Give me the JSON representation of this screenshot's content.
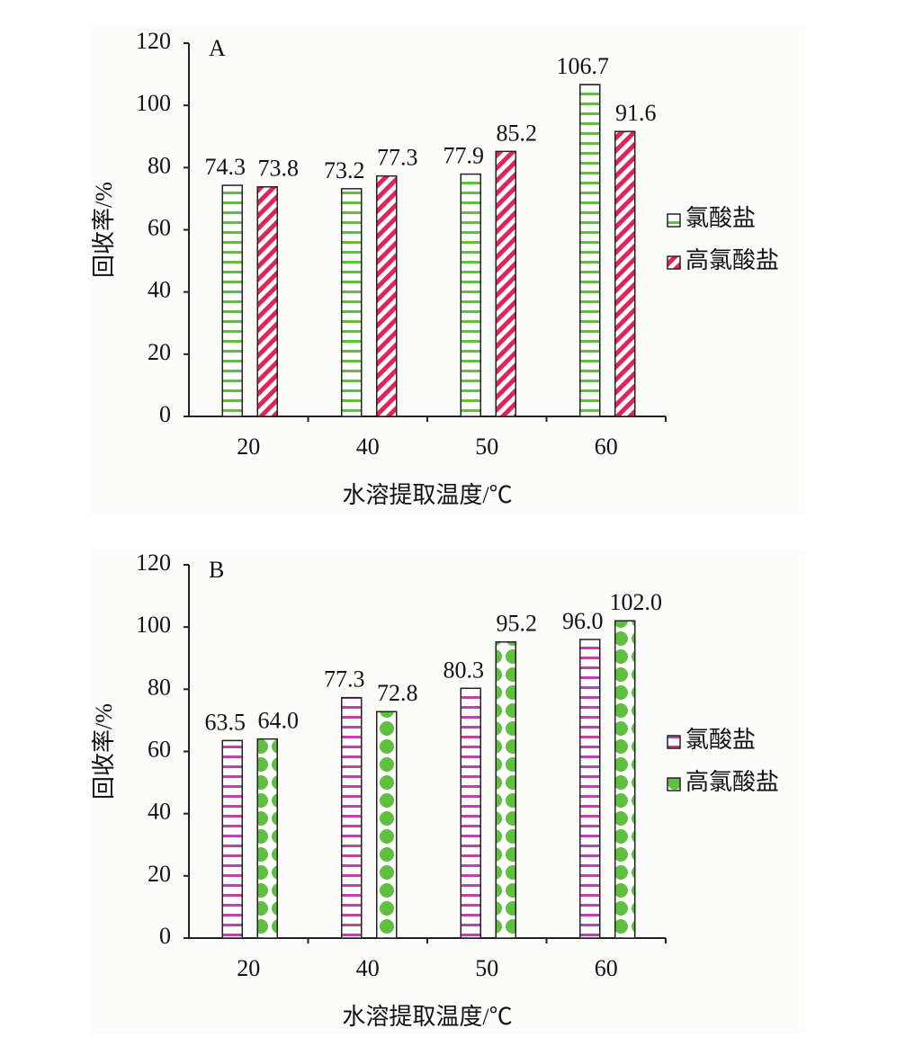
{
  "chart_data": [
    {
      "type": "bar",
      "panel_label": "A",
      "x_label": "水溶提取温度/℃",
      "y_label": "回收率/%",
      "categories": [
        "20",
        "40",
        "50",
        "60"
      ],
      "series": [
        {
          "name": "氯酸盐",
          "color": "#5fbf3f",
          "pattern": "horizontal-stripes",
          "values": [
            74.3,
            73.2,
            77.9,
            106.7
          ],
          "value_labels": [
            "74.3",
            "73.2",
            "77.9",
            "106.7"
          ]
        },
        {
          "name": "高氯酸盐",
          "color": "#e0245a",
          "pattern": "diagonal-stripes",
          "values": [
            73.8,
            77.3,
            85.2,
            91.6
          ],
          "value_labels": [
            "73.8",
            "77.3",
            "85.2",
            "91.6"
          ]
        }
      ],
      "ylim": [
        0,
        120
      ],
      "yticks": [
        0,
        20,
        40,
        60,
        80,
        100,
        120
      ],
      "legend": "right"
    },
    {
      "type": "bar",
      "panel_label": "B",
      "x_label": "水溶提取温度/℃",
      "y_label": "回收率/%",
      "categories": [
        "20",
        "40",
        "50",
        "60"
      ],
      "series": [
        {
          "name": "氯酸盐",
          "color": "#c040b0",
          "pattern": "horizontal-stripes",
          "values": [
            63.5,
            77.3,
            80.3,
            96
          ],
          "value_labels": [
            "63.5",
            "77.3",
            "80.3",
            "96.0"
          ]
        },
        {
          "name": "高氯酸盐",
          "color": "#5fbf3f",
          "pattern": "dots",
          "values": [
            64,
            72.8,
            95.2,
            102
          ],
          "value_labels": [
            "64.0",
            "72.8",
            "95.2",
            "102.0"
          ]
        }
      ],
      "ylim": [
        0,
        120
      ],
      "yticks": [
        0,
        20,
        40,
        60,
        80,
        100,
        120
      ],
      "legend": "right"
    }
  ]
}
